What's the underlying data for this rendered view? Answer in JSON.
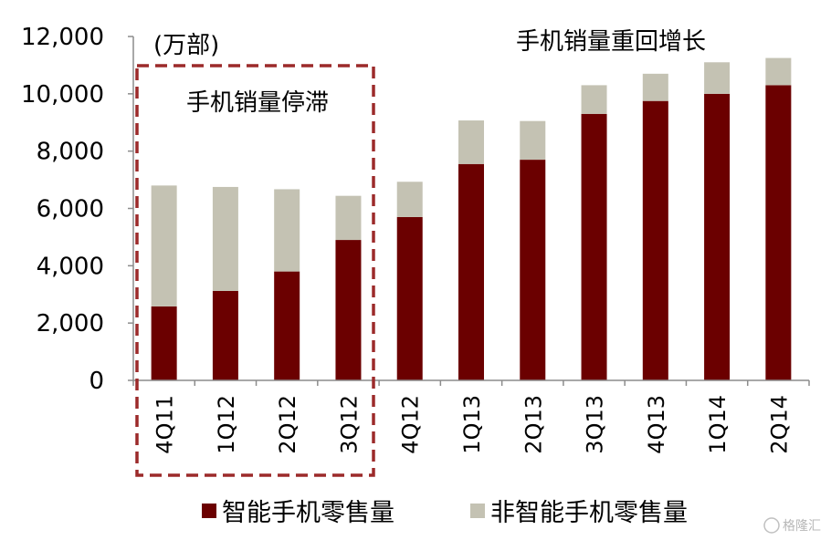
{
  "chart_data": {
    "type": "bar",
    "stacked": true,
    "categories": [
      "4Q11",
      "1Q12",
      "2Q12",
      "3Q12",
      "4Q12",
      "1Q13",
      "2Q13",
      "3Q13",
      "4Q13",
      "1Q14",
      "2Q14"
    ],
    "series": [
      {
        "name": "智能手机零售量",
        "color": "#6b0000",
        "values": [
          2580,
          3120,
          3800,
          4900,
          5700,
          7550,
          7700,
          9300,
          9750,
          10000,
          10300
        ]
      },
      {
        "name": "非智能手机零售量",
        "color": "#c4c2b3",
        "values": [
          4220,
          3630,
          2870,
          1540,
          1230,
          1520,
          1350,
          1000,
          950,
          1100,
          950
        ]
      }
    ],
    "ylim": [
      0,
      12000
    ],
    "yticks": [
      0,
      2000,
      4000,
      6000,
      8000,
      10000,
      12000
    ],
    "ytick_labels": [
      "0",
      "2,000",
      "4,000",
      "6,000",
      "8,000",
      "10,000",
      "12,000"
    ],
    "unit_label": "(万部)",
    "annotations": [
      {
        "text": "手机销量停滞"
      },
      {
        "text": "手机销量重回增长"
      }
    ],
    "legend_position": "bottom",
    "grid": false
  },
  "watermark": {
    "text": "格隆汇"
  }
}
